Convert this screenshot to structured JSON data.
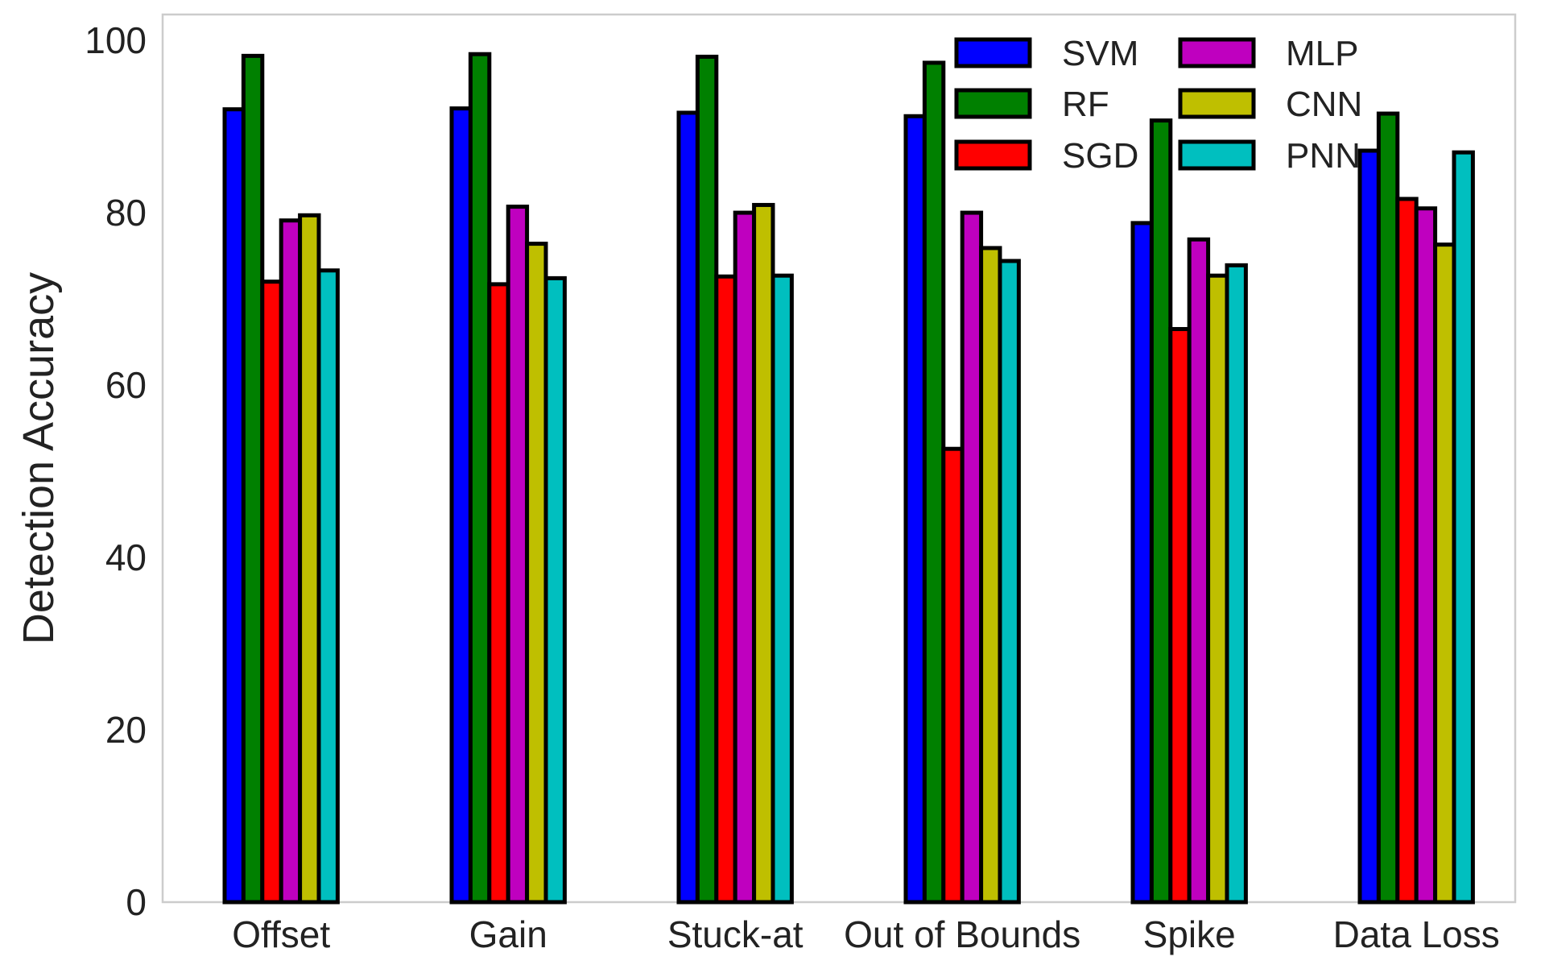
{
  "chart_data": {
    "type": "bar",
    "title": "",
    "xlabel": "",
    "ylabel": "Detection Accuracy",
    "ylim": [
      0,
      103
    ],
    "yticks": [
      0,
      20,
      40,
      60,
      80,
      100
    ],
    "grid": false,
    "legend_position": "top-right",
    "categories": [
      "Offset",
      "Gain",
      "Stuck-at",
      "Out of Bounds",
      "Spike",
      "Data Loss"
    ],
    "series": [
      {
        "name": "SVM",
        "color": "#0000ff",
        "values": [
          92.0,
          92.1,
          91.6,
          91.2,
          78.8,
          87.2
        ]
      },
      {
        "name": "RF",
        "color": "#008000",
        "values": [
          98.2,
          98.4,
          98.1,
          97.4,
          90.7,
          91.5
        ]
      },
      {
        "name": "SGD",
        "color": "#ff0000",
        "values": [
          72.0,
          71.7,
          72.6,
          52.6,
          66.5,
          81.6
        ]
      },
      {
        "name": "MLP",
        "color": "#bf00bf",
        "values": [
          79.1,
          80.7,
          80.0,
          80.0,
          76.9,
          80.5
        ]
      },
      {
        "name": "CNN",
        "color": "#bfbf00",
        "values": [
          79.7,
          76.4,
          80.9,
          75.9,
          72.7,
          76.3
        ]
      },
      {
        "name": "PNN",
        "color": "#00bfbf",
        "values": [
          73.3,
          72.4,
          72.7,
          74.4,
          73.9,
          87.0
        ]
      }
    ]
  }
}
